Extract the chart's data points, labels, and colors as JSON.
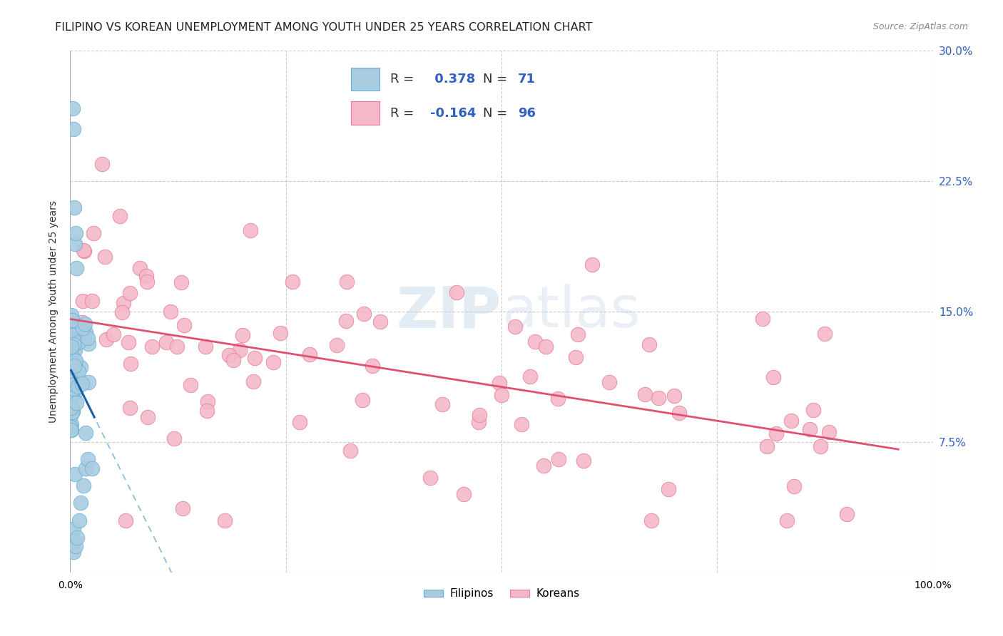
{
  "title": "FILIPINO VS KOREAN UNEMPLOYMENT AMONG YOUTH UNDER 25 YEARS CORRELATION CHART",
  "source": "Source: ZipAtlas.com",
  "ylabel": "Unemployment Among Youth under 25 years",
  "xlim": [
    0,
    1.0
  ],
  "ylim": [
    0,
    0.3
  ],
  "xtick_labels": [
    "0.0%",
    "",
    "",
    "",
    "100.0%"
  ],
  "ytick_labels": [
    "",
    "7.5%",
    "15.0%",
    "22.5%",
    "30.0%"
  ],
  "filipino_R": 0.378,
  "filipino_N": 71,
  "korean_R": -0.164,
  "korean_N": 96,
  "filipino_fill": "#a8cce0",
  "korean_fill": "#f4b8c8",
  "filipino_edge": "#6aaed6",
  "korean_edge": "#e87a96",
  "filipino_line_color": "#1a5fa8",
  "korean_line_color": "#e05070",
  "dashed_line_color": "#90bcd8",
  "background_color": "#ffffff",
  "grid_color": "#cccccc",
  "title_fontsize": 11.5,
  "label_fontsize": 10,
  "tick_fontsize": 10,
  "legend_R_color": "#333333",
  "legend_val_color": "#3060c0",
  "watermark_zip_color": "#c8d8e8",
  "watermark_atlas_color": "#c8d8e8",
  "right_tick_color": "#3060c0"
}
